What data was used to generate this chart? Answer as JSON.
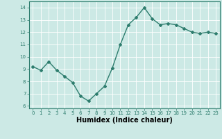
{
  "x": [
    0,
    1,
    2,
    3,
    4,
    5,
    6,
    7,
    8,
    9,
    10,
    11,
    12,
    13,
    14,
    15,
    16,
    17,
    18,
    19,
    20,
    21,
    22,
    23
  ],
  "y": [
    9.2,
    8.9,
    9.6,
    8.9,
    8.4,
    7.9,
    6.8,
    6.4,
    7.0,
    7.6,
    9.1,
    11.0,
    12.6,
    13.2,
    14.0,
    13.1,
    12.6,
    12.7,
    12.6,
    12.3,
    12.0,
    11.9,
    12.0,
    11.9
  ],
  "line_color": "#2e7d6e",
  "marker": "D",
  "marker_size": 2.0,
  "linewidth": 1.0,
  "xlabel": "Humidex (Indice chaleur)",
  "ylabel": "",
  "xlim": [
    -0.5,
    23.5
  ],
  "ylim": [
    5.8,
    14.5
  ],
  "yticks": [
    6,
    7,
    8,
    9,
    10,
    11,
    12,
    13,
    14
  ],
  "xticks": [
    0,
    1,
    2,
    3,
    4,
    5,
    6,
    7,
    8,
    9,
    10,
    11,
    12,
    13,
    14,
    15,
    16,
    17,
    18,
    19,
    20,
    21,
    22,
    23
  ],
  "bg_color": "#cce9e5",
  "grid_color": "#ffffff",
  "tick_label_fontsize": 5.0,
  "xlabel_fontsize": 7.0
}
